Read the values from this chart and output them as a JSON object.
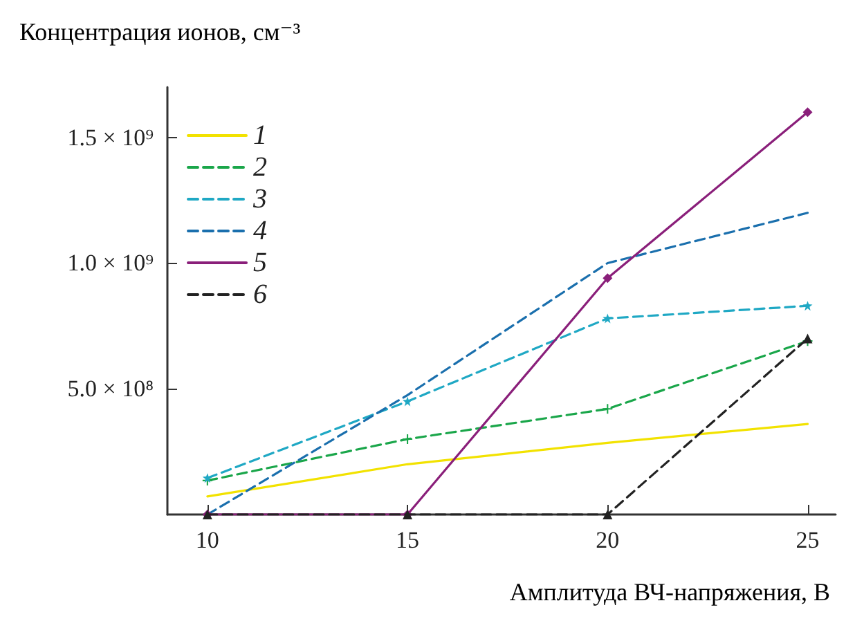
{
  "chart_data": {
    "type": "line",
    "xlabel": "Амплитуда ВЧ-напряжения, В",
    "ylabel": "Концентрация ионов, см⁻³",
    "x": [
      10,
      15,
      20,
      25
    ],
    "xlim": [
      9,
      25.7
    ],
    "xticks": [
      10,
      15,
      20,
      25
    ],
    "ylim": [
      0,
      1700000000
    ],
    "yticks": [
      {
        "value": 500000000,
        "label": "5.0 × 10⁸"
      },
      {
        "value": 1000000000,
        "label": "1.0 × 10⁹"
      },
      {
        "value": 1500000000,
        "label": "1.5 × 10⁹"
      }
    ],
    "grid": false,
    "legend": "top left",
    "series": [
      {
        "name": "1",
        "color": "#f2e200",
        "values": [
          72000000,
          200000000,
          285000000,
          360000000
        ],
        "marker": "none",
        "line_style": "solid"
      },
      {
        "name": "2",
        "color": "#1aa64a",
        "values": [
          135000000,
          300000000,
          420000000,
          690000000
        ],
        "marker": "cross",
        "line_style": "dashed"
      },
      {
        "name": "3",
        "color": "#1fa8c4",
        "values": [
          145000000,
          450000000,
          780000000,
          830000000
        ],
        "marker": "star",
        "line_style": "dashed"
      },
      {
        "name": "4",
        "color": "#1a6fad",
        "values": [
          0,
          475000000,
          1000000000,
          1200000000
        ],
        "marker": "none",
        "line_style": "dashed"
      },
      {
        "name": "5",
        "color": "#8a1f7a",
        "values": [
          0,
          0,
          940000000,
          1600000000
        ],
        "marker": "diamond",
        "line_style": "solid"
      },
      {
        "name": "6",
        "color": "#222222",
        "values": [
          0,
          0,
          0,
          700000000
        ],
        "marker": "triangle",
        "line_style": "dashed"
      }
    ]
  }
}
